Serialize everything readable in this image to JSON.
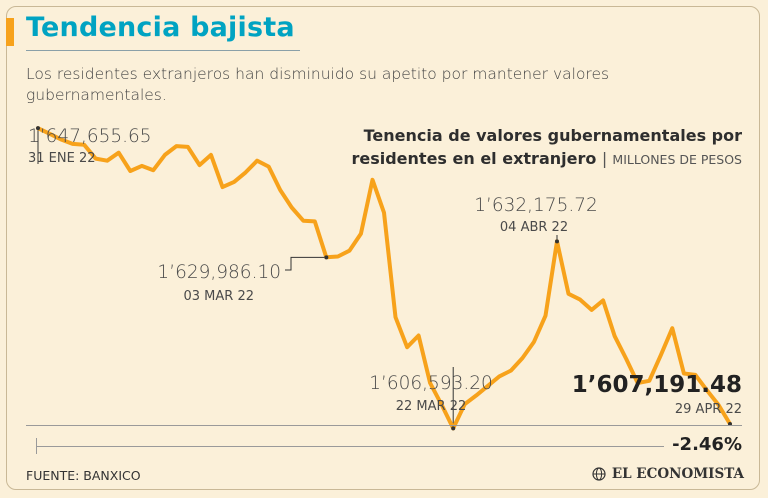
{
  "header": {
    "title": "Tendencia bajista",
    "subtitle": "Los residentes extranjeros han disminuido su apetito por mantener valores gubernamentales."
  },
  "chart_data": {
    "type": "line",
    "title": "Tenencia de valores gubernamentales por residentes en el extranjero",
    "units": "MILLONES DE PESOS",
    "xlabel": "",
    "ylabel": "",
    "ylim": [
      1605000,
      1648500
    ],
    "series": [
      {
        "name": "Tenencia",
        "values": [
          1647655.65,
          1646900,
          1646100,
          1645500,
          1645400,
          1643500,
          1643200,
          1644300,
          1641800,
          1642500,
          1641900,
          1644000,
          1645200,
          1645100,
          1642600,
          1644000,
          1639600,
          1640300,
          1641600,
          1643200,
          1642400,
          1639200,
          1636800,
          1635000,
          1634900,
          1629986.1,
          1630100,
          1630900,
          1633200,
          1640600,
          1636100,
          1621800,
          1617700,
          1619300,
          1612800,
          1609800,
          1606593.2,
          1609900,
          1611100,
          1612400,
          1613700,
          1614500,
          1616200,
          1618400,
          1622000,
          1632175.72,
          1625000,
          1624200,
          1622800,
          1624100,
          1619200,
          1616100,
          1612800,
          1613100,
          1616600,
          1620300,
          1614100,
          1613900,
          1611800,
          1609800,
          1607191.48
        ]
      }
    ],
    "annotations": [
      {
        "value": "1’647,655.65",
        "date": "31 ENE 22"
      },
      {
        "value": "1’629,986.10",
        "date": "03 MAR 22"
      },
      {
        "value": "1’606,593.20",
        "date": "22 MAR 22"
      },
      {
        "value": "1’632,175.72",
        "date": "04 ABR 22"
      }
    ],
    "last": {
      "value": "1’607,191.48",
      "date": "29 APR 22"
    },
    "change": "-2.46%"
  },
  "footer": {
    "source": "FUENTE: BANXICO",
    "brand": "EL ECONOMISTA"
  },
  "colors": {
    "accent": "#f7a21b",
    "title": "#00a3c2",
    "line": "#f7a21b",
    "background": "#fbf0d9"
  }
}
